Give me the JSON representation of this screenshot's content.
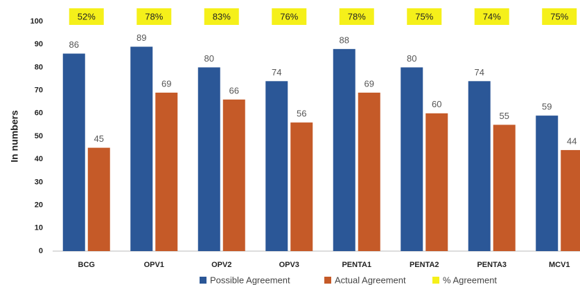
{
  "chart_data": {
    "type": "bar",
    "y_label": "In numbers",
    "categories": [
      "BCG",
      "OPV1",
      "OPV2",
      "OPV3",
      "PENTA1",
      "PENTA2",
      "PENTA3",
      "MCV1"
    ],
    "series": [
      {
        "name": "Possible Agreement",
        "color": "#2b5797",
        "values": [
          86,
          89,
          80,
          74,
          88,
          80,
          74,
          59
        ]
      },
      {
        "name": "Actual Agreement",
        "color": "#c55a28",
        "values": [
          45,
          69,
          66,
          56,
          69,
          60,
          55,
          44
        ]
      },
      {
        "name": "% Agreement",
        "color": "#f5f01a",
        "values": [
          52,
          78,
          83,
          76,
          78,
          75,
          74,
          75
        ],
        "value_labels": [
          "52%",
          "78%",
          "83%",
          "76%",
          "78%",
          "75%",
          "74%",
          "75%"
        ]
      }
    ],
    "ylim": [
      0,
      100
    ],
    "yticks": [
      0,
      10,
      20,
      30,
      40,
      50,
      60,
      70,
      80,
      90,
      100
    ],
    "grid": false
  }
}
